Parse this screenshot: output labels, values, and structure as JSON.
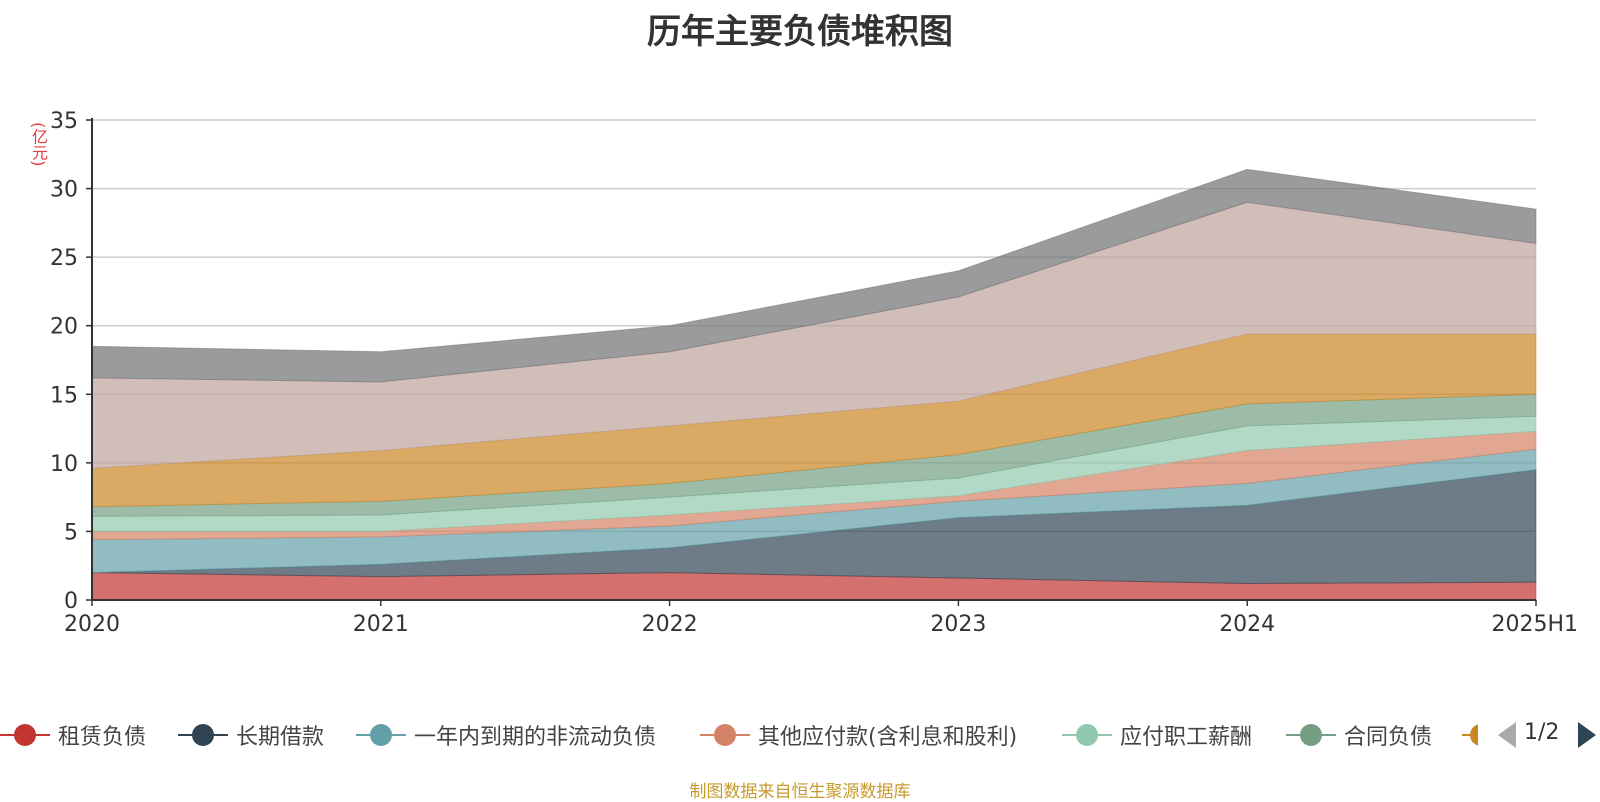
{
  "title": "历年主要负债堆积图",
  "unit": "(亿元)",
  "source": "制图数据来自恒生聚源数据库",
  "pager": {
    "text": "1/2"
  },
  "chart_data": {
    "type": "area",
    "stacked": true,
    "title": "历年主要负债堆积图",
    "ylabel": "(亿元)",
    "x": [
      "2020",
      "2021",
      "2022",
      "2023",
      "2024",
      "2025H1"
    ],
    "ylim": [
      0,
      35
    ],
    "yticks": [
      0,
      5,
      10,
      15,
      20,
      25,
      30,
      35
    ],
    "grid": true,
    "legend_position": "bottom",
    "series": [
      {
        "name": "租赁负债",
        "color": "#c23531",
        "values": [
          2.0,
          1.7,
          2.0,
          1.6,
          1.2,
          1.3
        ]
      },
      {
        "name": "长期借款",
        "color": "#2f4554",
        "values": [
          0.0,
          0.9,
          1.8,
          4.4,
          5.7,
          8.2
        ]
      },
      {
        "name": "一年内到期的非流动负债",
        "color": "#61a0a8",
        "values": [
          2.4,
          2.0,
          1.6,
          1.2,
          1.6,
          1.5
        ]
      },
      {
        "name": "其他应付款(含利息和股利)",
        "color": "#d48265",
        "values": [
          0.6,
          0.4,
          0.8,
          0.4,
          2.4,
          1.3
        ]
      },
      {
        "name": "应付职工薪酬",
        "color": "#91c7ae",
        "values": [
          1.1,
          1.2,
          1.3,
          1.3,
          1.8,
          1.1
        ]
      },
      {
        "name": "合同负债",
        "color": "#749f83",
        "values": [
          0.7,
          1.0,
          1.0,
          1.7,
          1.6,
          1.6
        ]
      },
      {
        "name": "",
        "color": "#ca8622",
        "values": [
          2.8,
          3.7,
          4.2,
          3.9,
          5.1,
          4.4
        ]
      },
      {
        "name": "",
        "color": "#bda29a",
        "values": [
          6.6,
          5.0,
          5.4,
          7.6,
          9.6,
          6.6
        ]
      },
      {
        "name": "",
        "color": "#6e7074",
        "values": [
          2.3,
          2.2,
          1.9,
          1.9,
          2.4,
          2.5
        ]
      }
    ]
  }
}
